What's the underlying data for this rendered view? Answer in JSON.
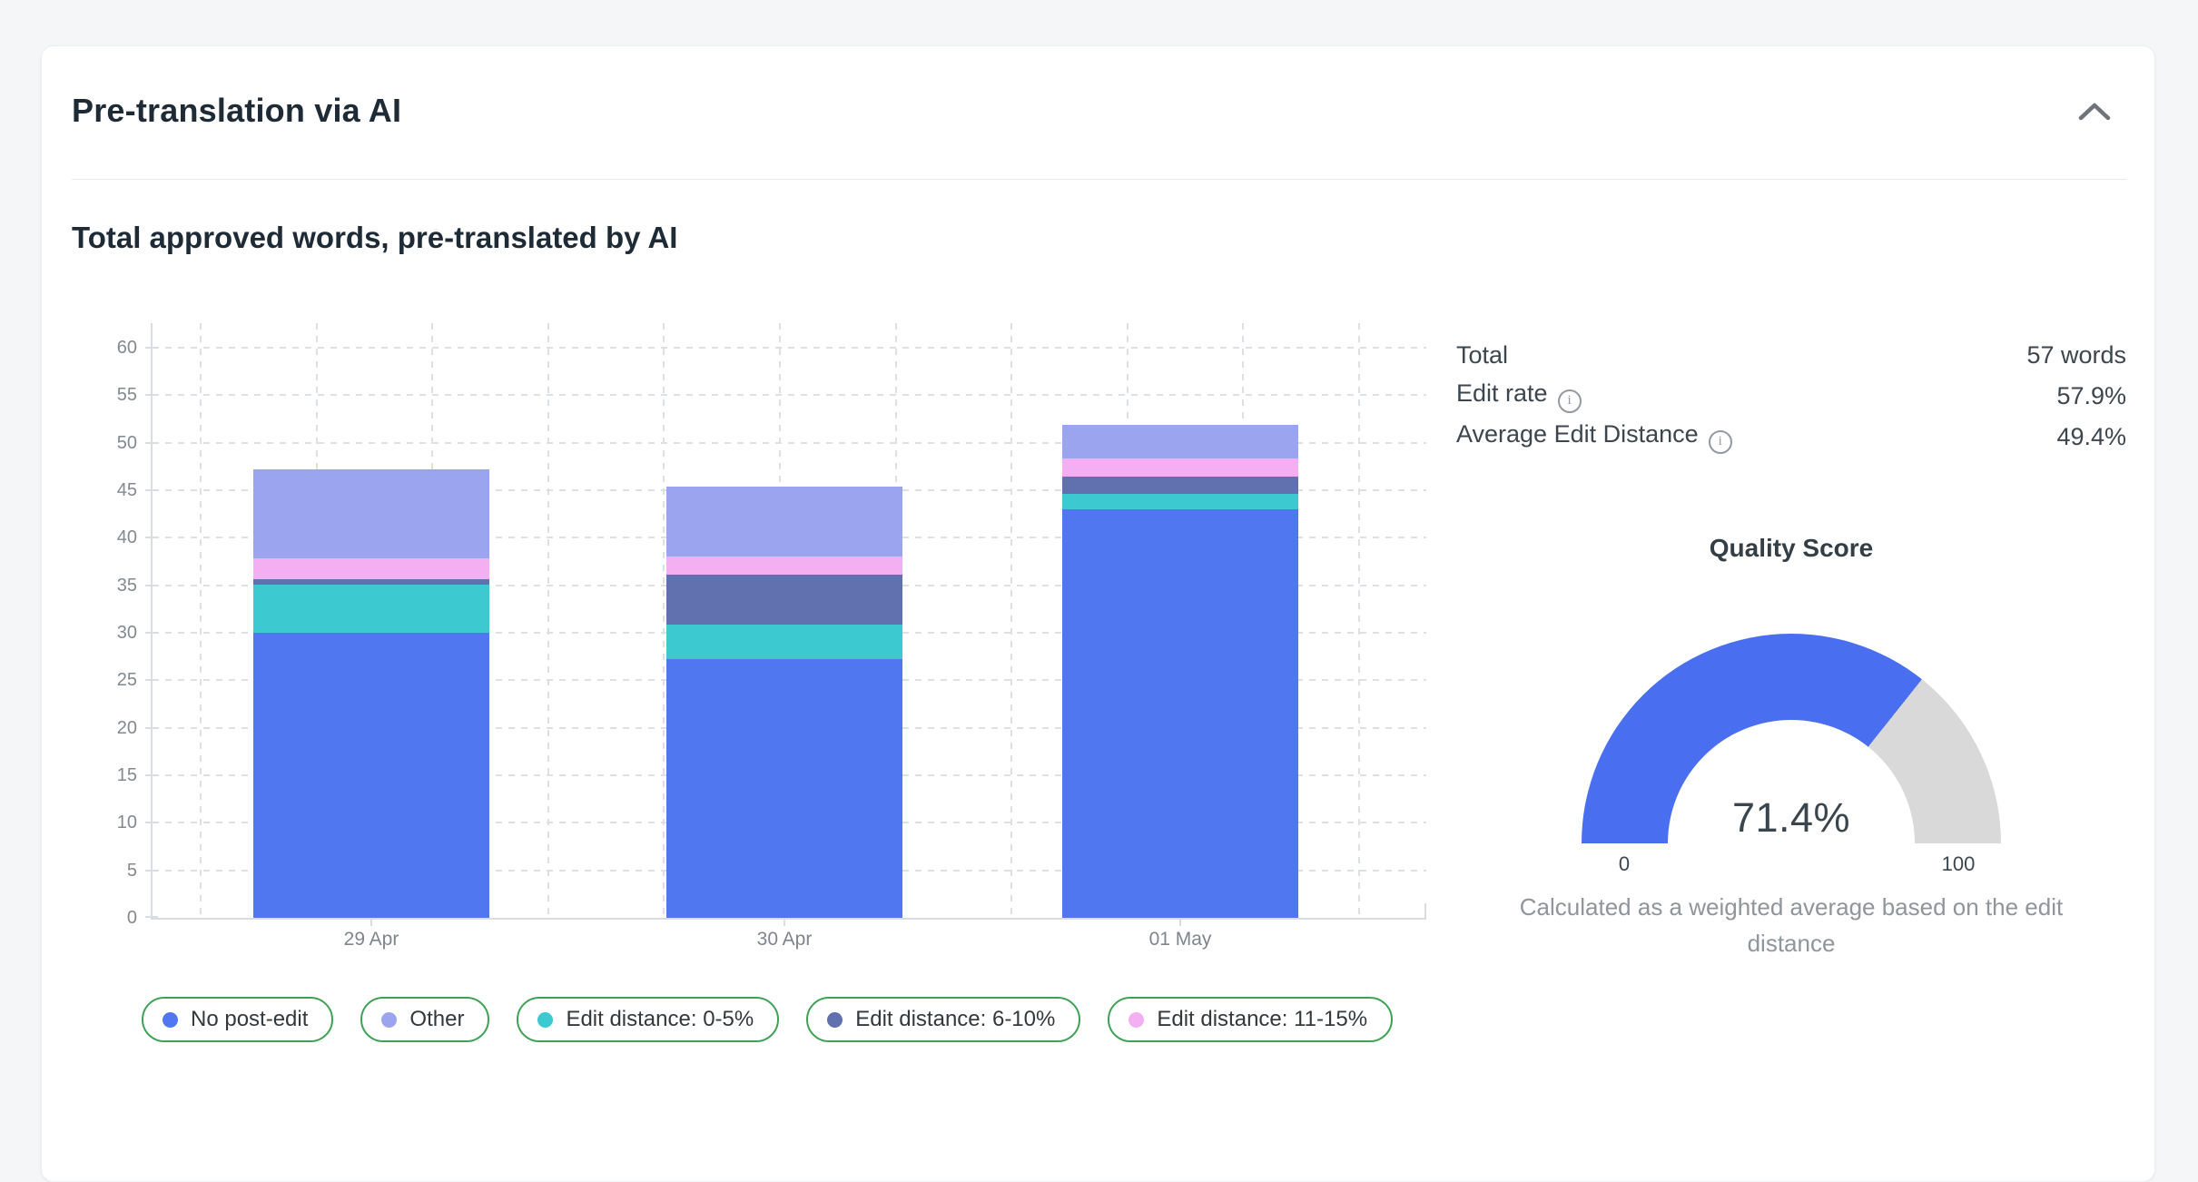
{
  "card": {
    "title": "Pre-translation via AI",
    "section_heading": "Total approved words, pre-translated by AI",
    "collapse_icon": "chevron-up-icon"
  },
  "stats": {
    "rows": [
      {
        "label": "Total",
        "value": "57 words",
        "info": false
      },
      {
        "label": "Edit rate",
        "value": "57.9%",
        "info": true
      },
      {
        "label": "Average Edit Distance",
        "value": "49.4%",
        "info": true
      }
    ]
  },
  "icons": {
    "info_glyph": "i"
  },
  "gauge": {
    "title": "Quality Score",
    "value": 71.4,
    "value_label": "71.4%",
    "min_label": "0",
    "max_label": "100",
    "caption": "Calculated as a weighted average based on the edit distance",
    "color": "#4a6ef0",
    "track_color": "#d9d9d9"
  },
  "chart_data": {
    "type": "bar",
    "stacked": true,
    "title": "Total approved words, pre-translated by AI",
    "categories": [
      "29 Apr",
      "30 Apr",
      "01 May"
    ],
    "series": [
      {
        "name": "No post-edit",
        "color": "#5076f0",
        "values": [
          30.0,
          27.2,
          43.0
        ]
      },
      {
        "name": "Edit distance: 0-5%",
        "color": "#3cc9cf",
        "values": [
          5.1,
          3.7,
          1.6
        ]
      },
      {
        "name": "Edit distance: 6-10%",
        "color": "#6170ae",
        "values": [
          0.5,
          5.2,
          1.8
        ]
      },
      {
        "name": "Edit distance: 11-15%",
        "color": "#f4aff3",
        "values": [
          2.2,
          1.9,
          1.9
        ]
      },
      {
        "name": "Other",
        "color": "#9ba4ef",
        "values": [
          9.4,
          7.4,
          3.6
        ]
      }
    ],
    "totals": [
      47.2,
      45.4,
      51.9
    ],
    "legend_order": [
      "No post-edit",
      "Other",
      "Edit distance: 0-5%",
      "Edit distance: 6-10%",
      "Edit distance: 11-15%"
    ],
    "legend_border_color": "#3fa155",
    "ylim": [
      0,
      60
    ],
    "ytick_step": 5,
    "grid": "dashed",
    "legend_position": "bottom"
  }
}
